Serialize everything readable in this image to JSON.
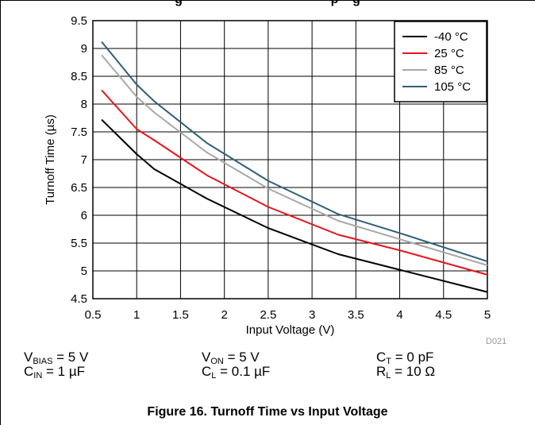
{
  "header": {
    "top_caption": "g                                          p    g"
  },
  "figure": {
    "caption": "Figure 16. Turnoff Time vs Input Voltage",
    "id_label": "D021"
  },
  "conditions": {
    "v_bias": {
      "sym": "V",
      "sub": "BIAS",
      "val": " = 5 V"
    },
    "c_in": {
      "sym": "C",
      "sub": "IN",
      "val": " = 1 µF"
    },
    "v_on": {
      "sym": "V",
      "sub": "ON",
      "val": " = 5 V"
    },
    "c_l": {
      "sym": "C",
      "sub": "L",
      "val": " = 0.1 µF"
    },
    "c_t": {
      "sym": "C",
      "sub": "T",
      "val": " = 0 pF"
    },
    "r_l": {
      "sym": "R",
      "sub": "L",
      "val": " = 10 Ω"
    }
  },
  "chart_data": {
    "type": "line",
    "title": "",
    "xlabel": "Input Voltage (V)",
    "ylabel": "Turnoff Time (µs)",
    "xlim": [
      0.5,
      5
    ],
    "ylim": [
      4.5,
      9.5
    ],
    "xticks": [
      "0.5",
      "1",
      "1.5",
      "2",
      "2.5",
      "3",
      "3.5",
      "4",
      "4.5",
      "5"
    ],
    "yticks": [
      "4.5",
      "5",
      "5.5",
      "6",
      "6.5",
      "7",
      "7.5",
      "8",
      "8.5",
      "9",
      "9.5"
    ],
    "grid": true,
    "legend_position": "top-right",
    "series": [
      {
        "name": "-40 °C",
        "color": "#000000",
        "x": [
          0.6,
          1.0,
          1.2,
          1.8,
          2.5,
          3.3,
          4.0,
          5.0
        ],
        "y": [
          7.72,
          7.1,
          6.83,
          6.3,
          5.77,
          5.3,
          5.02,
          4.62
        ]
      },
      {
        "name": "25 °C",
        "color": "#e8141b",
        "x": [
          0.6,
          1.0,
          1.2,
          1.8,
          2.5,
          3.3,
          4.0,
          5.0
        ],
        "y": [
          8.25,
          7.55,
          7.35,
          6.72,
          6.15,
          5.65,
          5.37,
          4.93
        ]
      },
      {
        "name": "85 °C",
        "color": "#a8a8a8",
        "x": [
          0.6,
          1.0,
          1.2,
          1.8,
          2.5,
          3.3,
          4.0,
          5.0
        ],
        "y": [
          8.88,
          8.13,
          7.85,
          7.13,
          6.48,
          5.9,
          5.57,
          5.1
        ]
      },
      {
        "name": "105 °C",
        "color": "#2f5f77",
        "x": [
          0.6,
          1.0,
          1.2,
          1.8,
          2.5,
          3.3,
          4.0,
          5.0
        ],
        "y": [
          9.12,
          8.35,
          8.05,
          7.3,
          6.62,
          6.02,
          5.68,
          5.17
        ]
      }
    ]
  }
}
